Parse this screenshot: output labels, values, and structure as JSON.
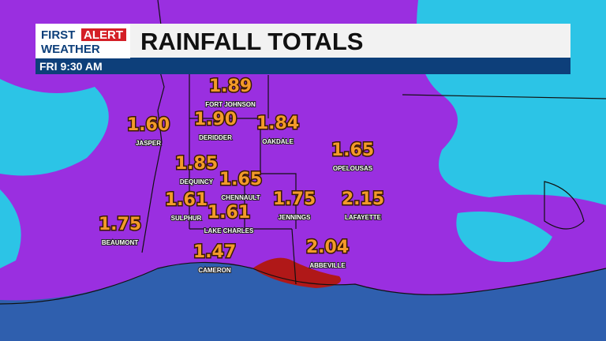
{
  "header": {
    "logo": {
      "first": "FIRST",
      "alert": "ALERT",
      "weather": "WEATHER"
    },
    "title": "RAINFALL TOTALS",
    "time": "FRI 9:30 AM"
  },
  "locations": [
    {
      "value": "1.89",
      "name": "FORT JOHNSON"
    },
    {
      "value": "1.60",
      "name": "JASPER"
    },
    {
      "value": "1.90",
      "name": "DERIDDER"
    },
    {
      "value": "1.84",
      "name": "OAKDALE"
    },
    {
      "value": "1.65",
      "name": "OPELOUSAS"
    },
    {
      "value": "1.85",
      "name": "DEQUINCY"
    },
    {
      "value": "1.65",
      "name": "CHENNAULT"
    },
    {
      "value": "1.75",
      "name": "JENNINGS"
    },
    {
      "value": "2.15",
      "name": "LAFAYETTE"
    },
    {
      "value": "1.61",
      "name": "SULPHUR"
    },
    {
      "value": "1.61",
      "name": "LAKE CHARLES"
    },
    {
      "value": "1.75",
      "name": "BEAUMONT"
    },
    {
      "value": "1.47",
      "name": "CAMERON"
    },
    {
      "value": "2.04",
      "name": "ABBEVILLE"
    }
  ]
}
